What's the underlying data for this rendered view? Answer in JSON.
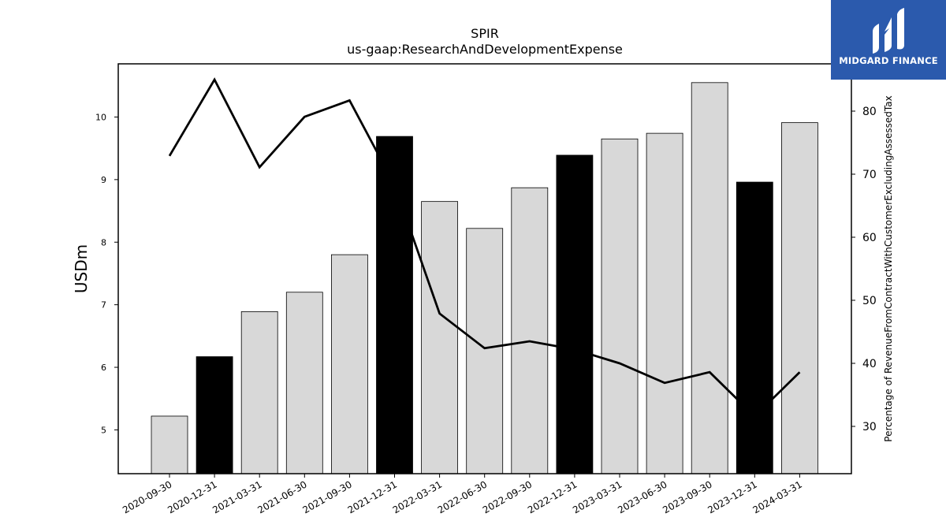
{
  "logo": {
    "text": "MIDGARD FINANCE",
    "icon": "midgard-m-icon",
    "background": "#2b5aad"
  },
  "chart_data": {
    "type": "bar",
    "title": "SPIR",
    "subtitle": "us-gaap:ResearchAndDevelopmentExpense",
    "ylabel": "USDm",
    "y2label": "Percentage of RevenueFromContractWithCustomerExcludingAssessedTax",
    "ylim": [
      4.3,
      10.85
    ],
    "y2lim": [
      22.5,
      87.5
    ],
    "yticks": [
      5,
      6,
      7,
      8,
      9,
      10
    ],
    "y2ticks": [
      30,
      40,
      50,
      60,
      70,
      80
    ],
    "categories": [
      "2020-09-30",
      "2020-12-31",
      "2021-03-31",
      "2021-06-30",
      "2021-09-30",
      "2021-12-31",
      "2022-03-31",
      "2022-06-30",
      "2022-09-30",
      "2022-12-31",
      "2023-03-31",
      "2023-06-30",
      "2023-09-30",
      "2023-12-31",
      "2024-03-31"
    ],
    "series": [
      {
        "kind": "bar",
        "axis": "left",
        "values": [
          5.22,
          6.17,
          6.89,
          7.2,
          7.8,
          9.69,
          8.65,
          8.22,
          8.87,
          9.39,
          9.65,
          9.74,
          10.55,
          8.96,
          9.91
        ],
        "highlight": [
          false,
          true,
          false,
          false,
          false,
          true,
          false,
          false,
          false,
          true,
          false,
          false,
          false,
          true,
          false
        ],
        "color": "#d8d8d8",
        "highlight_color": "#000000"
      },
      {
        "kind": "line",
        "axis": "right",
        "values": [
          72.9,
          85.0,
          71.1,
          79.1,
          81.7,
          68.3,
          47.9,
          42.4,
          43.5,
          42.2,
          40.0,
          36.9,
          38.6,
          31.6,
          38.6
        ],
        "color": "#000000"
      }
    ],
    "grid": false
  }
}
